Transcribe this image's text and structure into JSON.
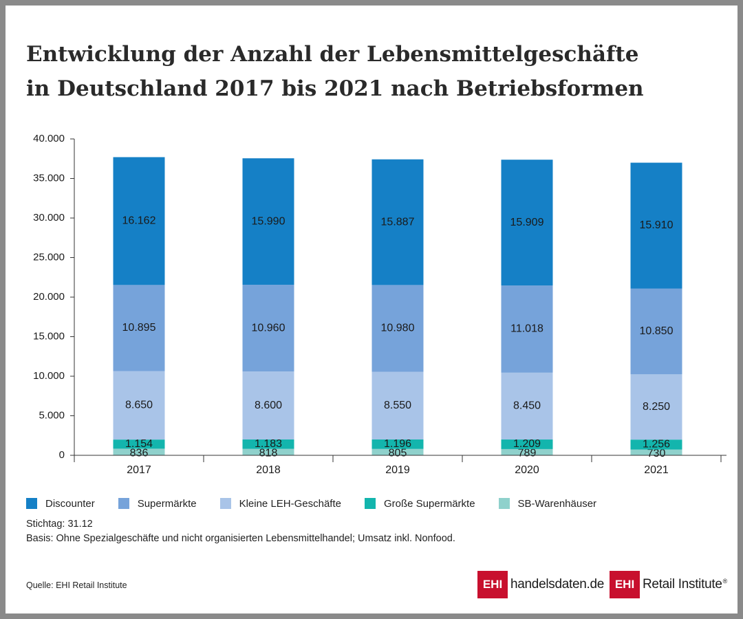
{
  "title_lines": [
    "Entwicklung der Anzahl der Lebensmittelgeschäfte",
    "in Deutschland 2017 bis 2021 nach Betriebsformen"
  ],
  "chart_data": {
    "type": "bar",
    "stacked": true,
    "categories": [
      "2017",
      "2018",
      "2019",
      "2020",
      "2021"
    ],
    "ylim": [
      0,
      40000
    ],
    "yticks": [
      0,
      5000,
      10000,
      15000,
      20000,
      25000,
      30000,
      35000,
      40000
    ],
    "ytick_labels": [
      "0",
      "5.000",
      "10.000",
      "15.000",
      "20.000",
      "25.000",
      "30.000",
      "35.000",
      "40.000"
    ],
    "series": [
      {
        "name": "SB-Warenhäuser",
        "color": "#8fd1cc",
        "values": [
          836,
          818,
          805,
          789,
          730
        ],
        "labels": [
          "836",
          "818",
          "805",
          "789",
          "730"
        ]
      },
      {
        "name": "Große Supermärkte",
        "color": "#13b5ad",
        "values": [
          1154,
          1183,
          1196,
          1209,
          1256
        ],
        "labels": [
          "1.154",
          "1.183",
          "1.196",
          "1.209",
          "1.256"
        ]
      },
      {
        "name": "Kleine LEH-Geschäfte",
        "color": "#a9c4e8",
        "values": [
          8650,
          8600,
          8550,
          8450,
          8250
        ],
        "labels": [
          "8.650",
          "8.600",
          "8.550",
          "8.450",
          "8.250"
        ]
      },
      {
        "name": "Supermärkte",
        "color": "#76a3da",
        "values": [
          10895,
          10960,
          10980,
          11018,
          10850
        ],
        "labels": [
          "10.895",
          "10.960",
          "10.980",
          "11.018",
          "10.850"
        ]
      },
      {
        "name": "Discounter",
        "color": "#1580c6",
        "values": [
          16162,
          15990,
          15887,
          15909,
          15910
        ],
        "labels": [
          "16.162",
          "15.990",
          "15.887",
          "15.909",
          "15.910"
        ]
      }
    ],
    "legend_order": [
      "Discounter",
      "Supermärkte",
      "Kleine LEH-Geschäfte",
      "Große Supermärkte",
      "SB-Warenhäuser"
    ],
    "legend_position": "bottom-left",
    "grid": false
  },
  "notes": [
    "Stichtag: 31.12",
    "Basis: Ohne Spezialgeschäfte und nicht organisierten Lebensmittelhandel; Umsatz inkl. Nonfood."
  ],
  "source": "Quelle: EHI Retail Institute",
  "brands": [
    {
      "box": "EHI",
      "text": "handelsdaten.de"
    },
    {
      "box": "EHI",
      "text": "Retail Institute",
      "mark": "®"
    }
  ]
}
